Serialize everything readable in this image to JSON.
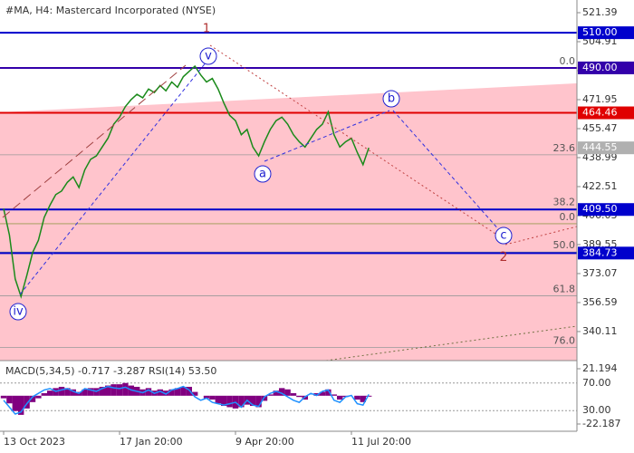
{
  "chart_data": [
    {
      "type": "line",
      "title": "#MA, H4:  Mastercard Incorporated (NYSE)",
      "categories": [
        "13 Oct 2023",
        null,
        null,
        null,
        null,
        null,
        null,
        null,
        null,
        null,
        null,
        null,
        null,
        null,
        null,
        null,
        null,
        null,
        null,
        null,
        "17 Jan 20:00",
        null,
        null,
        null,
        null,
        null,
        null,
        null,
        null,
        null,
        null,
        null,
        null,
        null,
        null,
        null,
        null,
        null,
        null,
        null,
        "9 Apr 20:00",
        null,
        null,
        null,
        null,
        null,
        null,
        null,
        null,
        null,
        null,
        null,
        null,
        null,
        null,
        null,
        null,
        null,
        null,
        null,
        "11 Jul 20:00",
        null,
        null,
        null
      ],
      "series": [
        {
          "color": "#1a8a1a",
          "values": [
            410,
            395,
            370,
            360,
            372,
            385,
            392,
            405,
            412,
            418,
            420,
            425,
            428,
            422,
            432,
            438,
            440,
            445,
            450,
            458,
            462,
            468,
            472,
            475,
            473,
            478,
            476,
            480,
            477,
            482,
            479,
            485,
            488,
            491,
            486,
            482,
            484,
            478,
            470,
            463,
            460,
            452,
            455,
            445,
            440,
            448,
            455,
            460,
            462,
            458,
            452,
            448,
            445,
            450,
            455,
            458,
            465,
            452,
            445,
            448,
            450,
            442,
            435,
            444.55
          ]
        }
      ],
      "ylim": [
        323.6,
        528.6
      ],
      "yticks": [
        521.39,
        504.91,
        488.43,
        471.95,
        455.47,
        438.99,
        422.51,
        406.03,
        389.55,
        373.07,
        356.59,
        340.11
      ],
      "levels": [
        {
          "value": 510,
          "label": "510.00",
          "color": "#0000cc"
        },
        {
          "value": 490,
          "label": "490.00",
          "color": "#3300aa"
        },
        {
          "value": 464.46,
          "label": "464.46",
          "color": "#e00000"
        },
        {
          "value": 444.55,
          "label": "444.55",
          "color": "#b0b0b0"
        },
        {
          "value": 409.5,
          "label": "409.50",
          "color": "#0000cc"
        },
        {
          "value": 384.73,
          "label": "384.73",
          "color": "#0000cc"
        }
      ],
      "fibs": [
        {
          "value": 490,
          "label": "0.0",
          "color": "#999999"
        },
        {
          "value": 440.6,
          "label": "23.6",
          "color": "#999999"
        },
        {
          "value": 409.8,
          "label": "38.2",
          "color": "#999999"
        },
        {
          "value": 401.4,
          "label": "0.0",
          "color": "#9a9a50"
        },
        {
          "value": 385.3,
          "label": "50.0",
          "color": "#999999"
        },
        {
          "value": 360.4,
          "label": "61.8",
          "color": "#999999"
        },
        {
          "value": 331.0,
          "label": "76.0",
          "color": "#999999"
        }
      ],
      "waves": [
        "1",
        "v",
        "b",
        "a",
        "c",
        "2",
        "iv"
      ]
    },
    {
      "type": "macd",
      "title": "MACD(5,34,5) -0.717 -3.287 RSI(14) 53.50",
      "series": [
        {
          "color": "#800080",
          "axis": "y2",
          "values": [
            -2,
            -6,
            -12,
            -15,
            -10,
            -5,
            -2,
            2,
            4,
            6,
            7,
            6,
            5,
            3,
            5,
            6,
            6,
            7,
            8,
            9,
            9,
            10,
            8,
            7,
            5,
            6,
            4,
            5,
            4,
            5,
            6,
            7,
            7,
            3,
            0,
            -2,
            -3,
            -6,
            -8,
            -9,
            -10,
            -9,
            -7,
            -8,
            -9,
            -4,
            1,
            4,
            6,
            5,
            2,
            -1,
            -3,
            0,
            2,
            3,
            5,
            1,
            -3,
            -1,
            0,
            -3,
            -5,
            -0.717
          ]
        },
        {
          "color": "#1e90ff",
          "values": [
            45,
            35,
            25,
            28,
            40,
            50,
            55,
            60,
            62,
            58,
            60,
            62,
            58,
            55,
            62,
            60,
            58,
            62,
            65,
            63,
            62,
            64,
            60,
            58,
            56,
            60,
            55,
            58,
            54,
            60,
            62,
            65,
            60,
            50,
            45,
            48,
            42,
            40,
            38,
            40,
            42,
            35,
            45,
            38,
            36,
            50,
            55,
            58,
            55,
            50,
            45,
            42,
            50,
            55,
            52,
            58,
            60,
            45,
            42,
            50,
            52,
            40,
            38,
            53.5
          ]
        }
      ],
      "ylim": [
        0,
        100
      ],
      "yticks": [
        {
          "value": 70,
          "label": "70.00"
        },
        {
          "value": 30,
          "label": "30.00"
        }
      ],
      "y2lim": [
        -27.88,
        26.17
      ],
      "y2ticks": [
        21.194,
        -22.187
      ]
    }
  ]
}
